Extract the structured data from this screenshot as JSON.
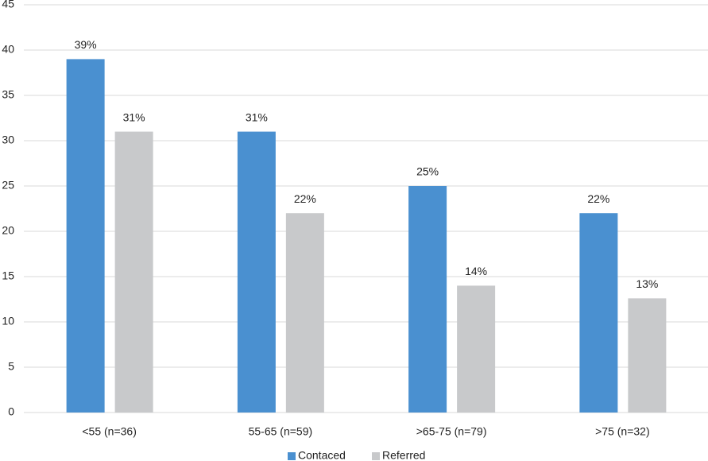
{
  "chart_data": {
    "type": "bar",
    "categories": [
      "<55 (n=36)",
      "55-65 (n=59)",
      ">65-75 (n=79)",
      ">75 (n=32)"
    ],
    "series": [
      {
        "name": "Contaced",
        "color": "#4a90d0",
        "values": [
          39,
          31,
          25,
          22
        ],
        "value_labels": [
          "39%",
          "31%",
          "25%",
          "22%"
        ]
      },
      {
        "name": "Referred",
        "color": "#c8c9cb",
        "values": [
          31,
          22,
          14,
          12.6
        ],
        "value_labels": [
          "31%",
          "22%",
          "14%",
          "13%"
        ]
      }
    ],
    "ylim": [
      0,
      45
    ],
    "yticks": [
      0,
      5,
      10,
      15,
      20,
      25,
      30,
      35,
      40,
      45
    ],
    "grid": true,
    "legend": "bottom"
  }
}
